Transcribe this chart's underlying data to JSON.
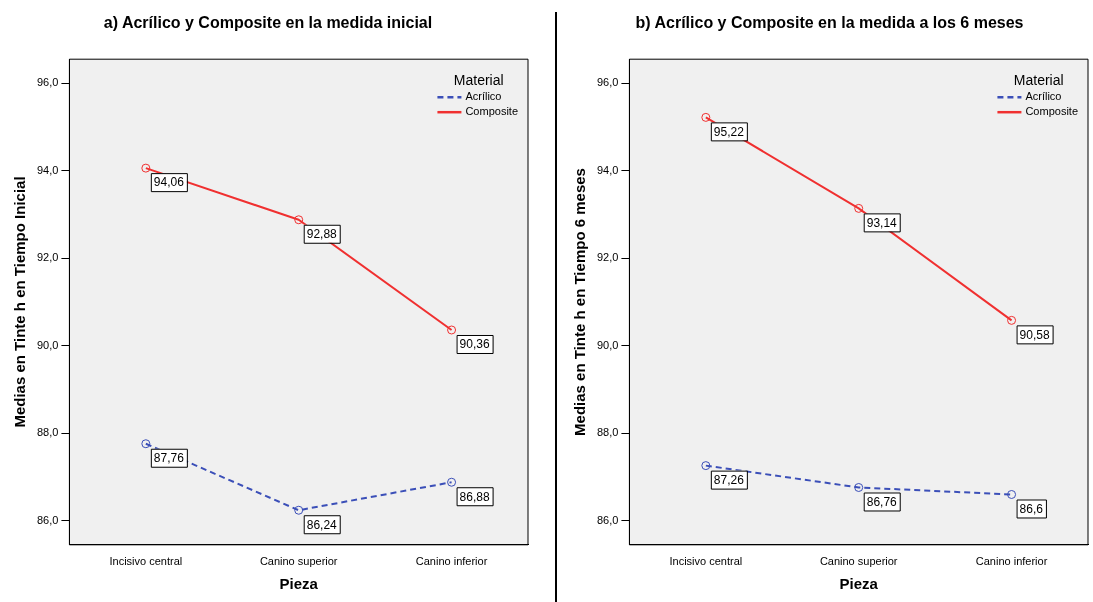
{
  "chart_data": [
    {
      "type": "line",
      "title": "a) Acrílico y Composite en la medida inicial",
      "xlabel": "Pieza",
      "ylabel": "Medias en Tinte h en Tiempo Inicial",
      "legend_title": "Material",
      "legend": "top right",
      "marker": "circle",
      "grid": false,
      "categories": [
        "Incisivo central",
        "Canino superior",
        "Canino inferior"
      ],
      "ylim": [
        85.45,
        96.55
      ],
      "yticks": [
        {
          "value": 86,
          "label": "86,0"
        },
        {
          "value": 88,
          "label": "88,0"
        },
        {
          "value": 90,
          "label": "90,0"
        },
        {
          "value": 92,
          "label": "92,0"
        },
        {
          "value": 94,
          "label": "94,0"
        },
        {
          "value": 96,
          "label": "96,0"
        }
      ],
      "series": [
        {
          "name": "Acrílico",
          "color": "#3b4fb8",
          "line_style": "dashed",
          "values": [
            87.76,
            86.24,
            86.88
          ],
          "value_labels": [
            "87,76",
            "86,24",
            "86,88"
          ]
        },
        {
          "name": "Composite",
          "color": "#f03030",
          "line_style": "solid",
          "values": [
            94.06,
            92.88,
            90.36
          ],
          "value_labels": [
            "94,06",
            "92,88",
            "90,36"
          ]
        }
      ]
    },
    {
      "type": "line",
      "title": "b) Acrílico y Composite en la medida a los 6 meses",
      "xlabel": "Pieza",
      "ylabel": "Medias en Tinte h en Tiempo 6 meses",
      "legend_title": "Material",
      "legend": "top right",
      "marker": "circle",
      "grid": false,
      "categories": [
        "Incisivo central",
        "Canino superior",
        "Canino inferior"
      ],
      "ylim": [
        85.45,
        96.55
      ],
      "yticks": [
        {
          "value": 86,
          "label": "86,0"
        },
        {
          "value": 88,
          "label": "88,0"
        },
        {
          "value": 90,
          "label": "90,0"
        },
        {
          "value": 92,
          "label": "92,0"
        },
        {
          "value": 94,
          "label": "94,0"
        },
        {
          "value": 96,
          "label": "96,0"
        }
      ],
      "series": [
        {
          "name": "Acrílico",
          "color": "#3b4fb8",
          "line_style": "dashed",
          "values": [
            87.26,
            86.76,
            86.6
          ],
          "value_labels": [
            "87,26",
            "86,76",
            "86,6"
          ]
        },
        {
          "name": "Composite",
          "color": "#f03030",
          "line_style": "solid",
          "values": [
            95.22,
            93.14,
            90.58
          ],
          "value_labels": [
            "95,22",
            "93,14",
            "90,58"
          ]
        }
      ]
    }
  ]
}
